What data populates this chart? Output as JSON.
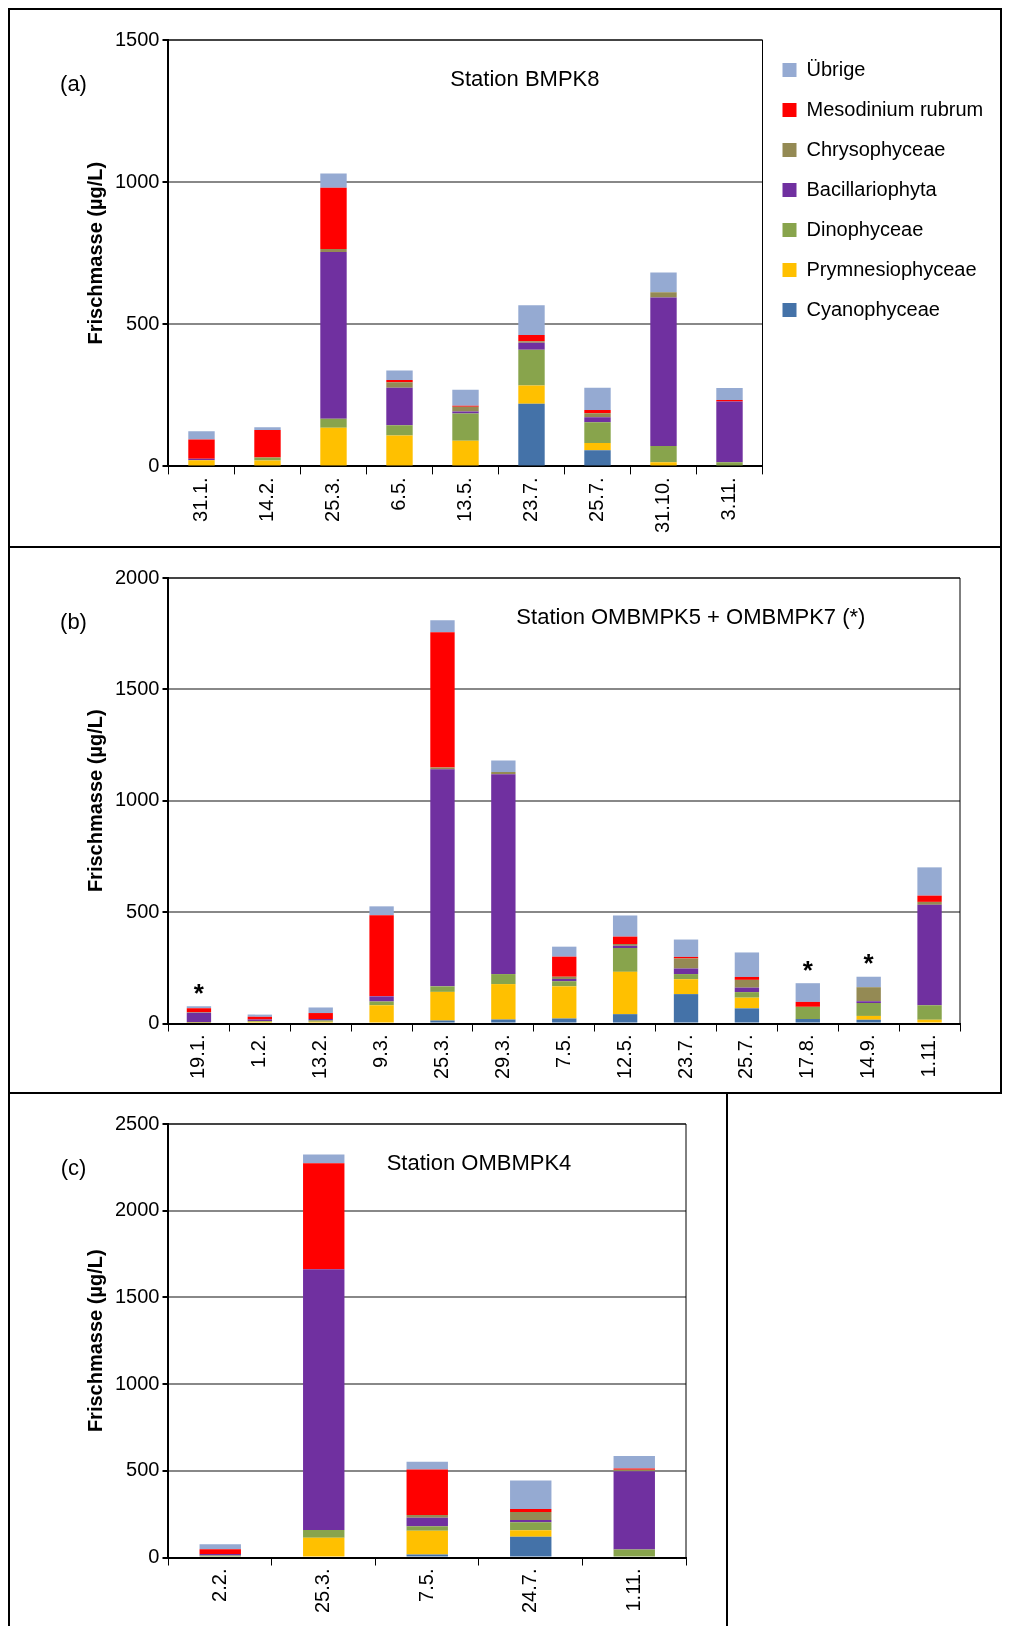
{
  "chart_data": [
    {
      "type": "bar",
      "stacked": true,
      "title": "Station BMPK8",
      "ylabel": "Frischmasse (µg/L)",
      "categories": [
        "31.1.",
        "14.2.",
        "25.3.",
        "6.5.",
        "13.5.",
        "23.7.",
        "25.7.",
        "31.10.",
        "3.11."
      ],
      "ylim": [
        0,
        1500
      ],
      "yticks": [
        0,
        500,
        1000,
        1500
      ],
      "grid": "y",
      "legend": "right",
      "annotations": [
        "(a)"
      ],
      "series": [
        {
          "name": "Cyanophyceae",
          "color": "#4472a8",
          "values": [
            0,
            0,
            0,
            null,
            0,
            220,
            57,
            0,
            0
          ]
        },
        {
          "name": "Prymnesiophyceae",
          "color": "#ffc000",
          "values": [
            22,
            21,
            136,
            109,
            90,
            65,
            25,
            15,
            0
          ]
        },
        {
          "name": "Dinophyceae",
          "color": "#88a44c",
          "values": [
            null,
            10,
            32,
            36,
            96,
            125,
            73,
            57,
            15
          ]
        },
        {
          "name": "Bacillariophyta",
          "color": "#7030a0",
          "values": [
            5,
            0,
            586,
            132,
            7,
            25,
            18,
            522,
            213
          ]
        },
        {
          "name": "Chrysophyceae",
          "color": "#948a54",
          "values": [
            0,
            0,
            11,
            19,
            17,
            5,
            14,
            19,
            0
          ]
        },
        {
          "name": "Mesodinium rubrum",
          "color": "#ff0000",
          "values": [
            68,
            97,
            215,
            8,
            3,
            22,
            11,
            0,
            6
          ]
        },
        {
          "name": "Übrige",
          "color": "#95aad2",
          "values": [
            29,
            10,
            50,
            33,
            57,
            105,
            79,
            69,
            42
          ]
        }
      ]
    },
    {
      "type": "bar",
      "stacked": true,
      "title": "Station OMBMPK5 + OMBMPK7 (*)",
      "ylabel": "Frischmasse (µg/L)",
      "categories": [
        "19.1.",
        "1.2.",
        "13.2.",
        "9.3.",
        "25.3.",
        "29.3.",
        "7.5.",
        "12.5.",
        "23.7.",
        "25.7.",
        "17.8.",
        "14.9.",
        "1.11."
      ],
      "ylim": [
        0,
        2000
      ],
      "yticks": [
        0,
        500,
        1000,
        1500,
        2000
      ],
      "grid": "y",
      "legend": false,
      "annotations": [
        "(b)",
        {
          "text": "*",
          "x": "19.1.",
          "y": 77
        },
        {
          "text": "*",
          "x": "17.8.",
          "y": 180
        },
        {
          "text": "*",
          "x": "14.9.",
          "y": 210
        }
      ],
      "series": [
        {
          "color": "#4472a8",
          "values": [
            0,
            0,
            0,
            0,
            13,
            18,
            22,
            42,
            132,
            68,
            20,
            17,
            0
          ]
        },
        {
          "color": "#ffc000",
          "values": [
            3,
            8,
            8,
            82,
            129,
            159,
            145,
            190,
            67,
            48,
            0,
            17,
            17
          ]
        },
        {
          "color": "#88a44c",
          "values": [
            3,
            3,
            5,
            17,
            25,
            45,
            23,
            107,
            23,
            25,
            55,
            58,
            65
          ]
        },
        {
          "color": "#7030a0",
          "values": [
            42,
            7,
            7,
            23,
            974,
            897,
            10,
            10,
            25,
            20,
            0,
            8,
            451
          ]
        },
        {
          "color": "#948a54",
          "values": [
            3,
            0,
            0,
            null,
            8,
            10,
            10,
            8,
            45,
            35,
            0,
            63,
            13
          ]
        },
        {
          "color": "#ff0000",
          "values": [
            18,
            12,
            27,
            364,
            608,
            0,
            90,
            33,
            7,
            13,
            22,
            0,
            28
          ]
        },
        {
          "color": "#95aad2",
          "values": [
            8,
            10,
            25,
            40,
            53,
            52,
            45,
            95,
            78,
            110,
            84,
            47,
            127
          ]
        }
      ]
    },
    {
      "type": "bar",
      "stacked": true,
      "title": "Station OMBMPK4",
      "ylabel": "Frischmasse (µg/L)",
      "categories": [
        "2.2.",
        "25.3.",
        "7.5.",
        "24.7.",
        "1.11."
      ],
      "ylim": [
        0,
        2500
      ],
      "yticks": [
        0,
        500,
        1000,
        1500,
        2000,
        2500
      ],
      "grid": "y",
      "legend": false,
      "annotations": [
        "(c)"
      ],
      "series": [
        {
          "color": "#4472a8",
          "values": [
            0,
            0,
            18,
            120,
            0
          ]
        },
        {
          "color": "#ffc000",
          "values": [
            0,
            114,
            136,
            37,
            0
          ]
        },
        {
          "color": "#88a44c",
          "values": [
            11,
            44,
            26,
            46,
            46
          ]
        },
        {
          "color": "#7030a0",
          "values": [
            9,
            1505,
            50,
            13,
            451
          ]
        },
        {
          "color": "#948a54",
          "values": [
            0,
            0,
            15,
            46,
            9
          ]
        },
        {
          "color": "#ff0000",
          "values": [
            28,
            611,
            263,
            18,
            7
          ]
        },
        {
          "color": "#95aad2",
          "values": [
            28,
            50,
            44,
            164,
            72
          ]
        }
      ]
    }
  ]
}
